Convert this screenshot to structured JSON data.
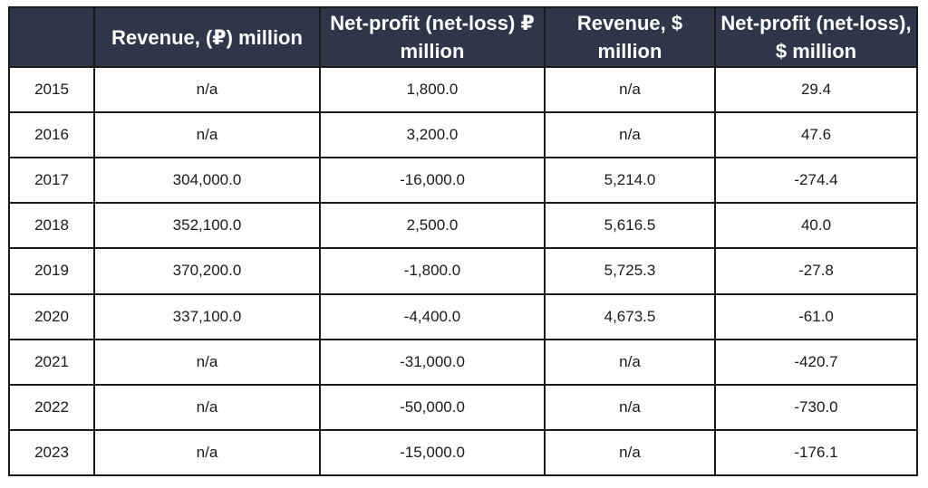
{
  "table": {
    "headers": [
      "",
      "Revenue, (₽) million",
      "Net-profit (net-loss) ₽ million",
      "Revenue, $ million",
      "Net-profit (net-loss), $ million"
    ],
    "rows": [
      [
        "2015",
        "n/a",
        "1,800.0",
        "n/a",
        "29.4"
      ],
      [
        "2016",
        "n/a",
        "3,200.0",
        "n/a",
        "47.6"
      ],
      [
        "2017",
        "304,000.0",
        "-16,000.0",
        "5,214.0",
        "-274.4"
      ],
      [
        "2018",
        "352,100.0",
        "2,500.0",
        "5,616.5",
        "40.0"
      ],
      [
        "2019",
        "370,200.0",
        "-1,800.0",
        "5,725.3",
        "-27.8"
      ],
      [
        "2020",
        "337,100.0",
        "-4,400.0",
        "4,673.5",
        "-61.0"
      ],
      [
        "2021",
        "n/a",
        "-31,000.0",
        "n/a",
        "-420.7"
      ],
      [
        "2022",
        "n/a",
        "-50,000.0",
        "n/a",
        "-730.0"
      ],
      [
        "2023",
        "n/a",
        "-15,000.0",
        "n/a",
        "-176.1"
      ]
    ]
  },
  "colors": {
    "header_bg": "#2f364a",
    "header_text": "#ffffff",
    "border": "#1a1a1a"
  }
}
